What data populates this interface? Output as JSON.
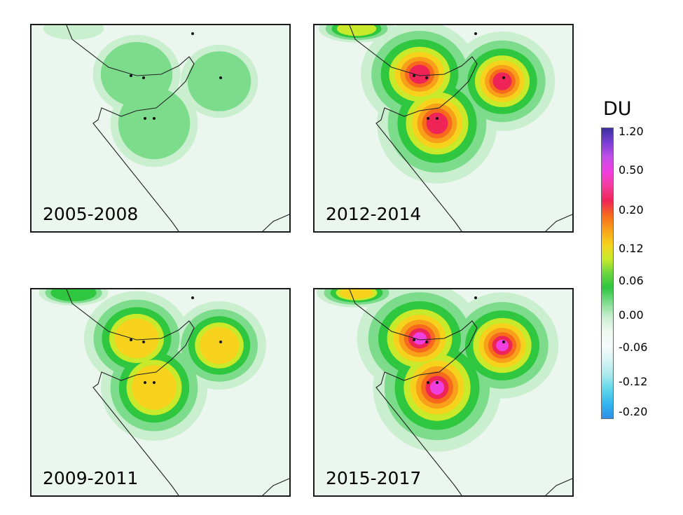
{
  "legend": {
    "unit": "DU",
    "ticks": [
      "1.20",
      "0.50",
      "0.20",
      "0.12",
      "0.06",
      "0.00",
      "-0.06",
      "-0.12",
      "-0.20"
    ],
    "colors": [
      "#3b2fa0",
      "#7c3fd6",
      "#c34ee8",
      "#f03fe0",
      "#f43c9b",
      "#ee2457",
      "#f76a1c",
      "#f8a01a",
      "#f6d21d",
      "#c9ea2a",
      "#6ad640",
      "#2fc640",
      "#7cdc8c",
      "#c9efcf",
      "#eef9f0",
      "#f7fbfb",
      "#d8f4f4",
      "#a9e9ee",
      "#5fd6ea",
      "#34b6ee",
      "#2f8fe8"
    ]
  },
  "panels": [
    {
      "label": "2005-2008",
      "intensity": 0.4
    },
    {
      "label": "2012-2014",
      "intensity": 1.0
    },
    {
      "label": "2009-2011",
      "intensity": 0.75
    },
    {
      "label": "2015-2017",
      "intensity": 1.15
    }
  ]
}
